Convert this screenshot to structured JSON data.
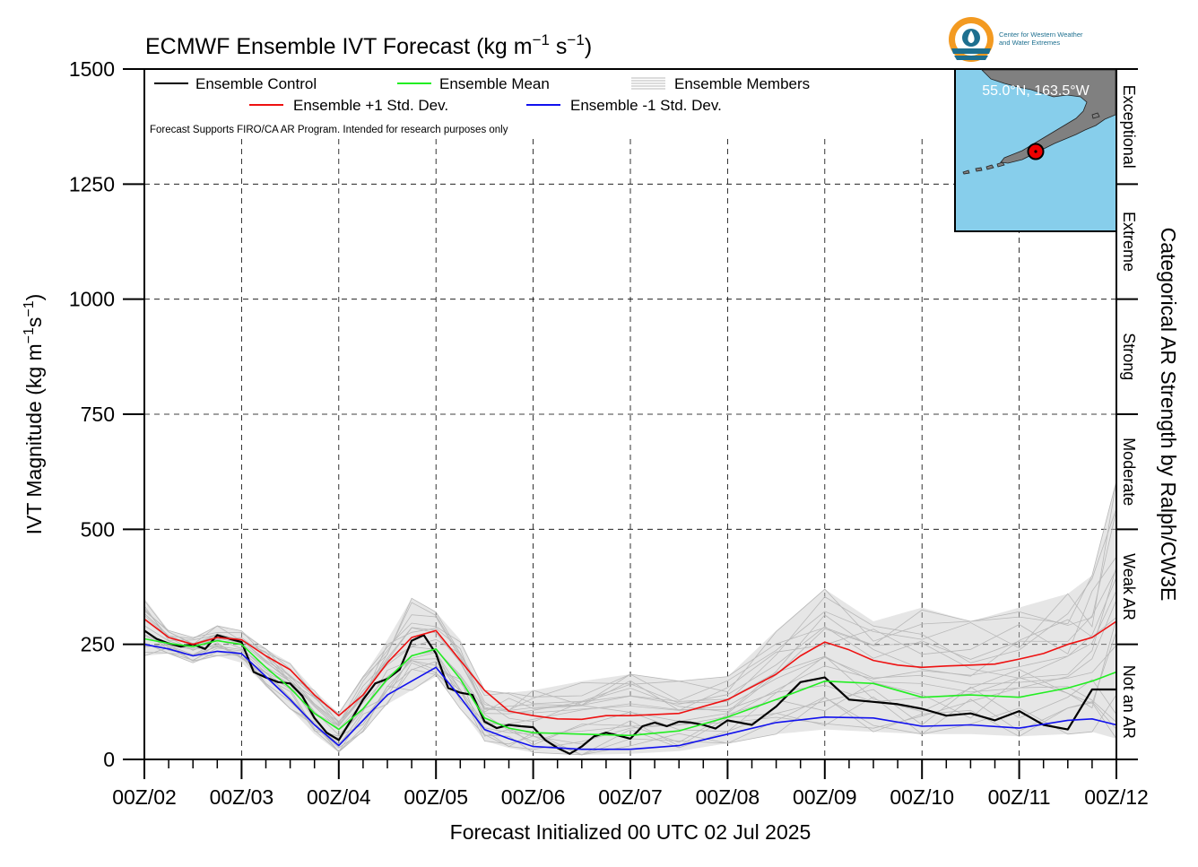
{
  "chart_data": {
    "type": "line",
    "title": "ECMWF Ensemble IVT Forecast (kg m",
    "title_units": {
      "exp1": "−1",
      "s": " s",
      "exp2": "−1",
      "close": ")"
    },
    "ylabel": "IVT Magnitude (kg m",
    "ylabel_units": {
      "exp1": "−1",
      "s": "s",
      "exp2": "−1",
      "close": ")"
    },
    "xlabel": "Forecast Initialized 00 UTC 02 Jul 2025",
    "right_label": "Categorical AR Strength by Ralph/CW3E",
    "ylim": [
      0,
      1500
    ],
    "yticks": [
      0,
      250,
      500,
      750,
      1000,
      1250,
      1500
    ],
    "xlim": [
      0,
      240
    ],
    "x_unit": "forecast hour",
    "x_ticks": [
      0,
      24,
      48,
      72,
      96,
      120,
      144,
      168,
      192,
      216,
      240
    ],
    "x_tick_labels": [
      "00Z/02",
      "00Z/03",
      "00Z/04",
      "00Z/05",
      "00Z/06",
      "00Z/07",
      "00Z/08",
      "00Z/09",
      "00Z/10",
      "00Z/11",
      "00Z/12"
    ],
    "grid": true,
    "categories": [
      {
        "label": "Not an AR",
        "min": 0,
        "max": 250
      },
      {
        "label": "Weak AR",
        "min": 250,
        "max": 500
      },
      {
        "label": "Moderate",
        "min": 500,
        "max": 750
      },
      {
        "label": "Strong",
        "min": 750,
        "max": 1000
      },
      {
        "label": "Extreme",
        "min": 1000,
        "max": 1250
      },
      {
        "label": "Exceptional",
        "min": 1250,
        "max": 1500
      }
    ],
    "legend": {
      "placement": "top-left",
      "entries": [
        {
          "label": "Ensemble Control",
          "color": "#000000"
        },
        {
          "label": "Ensemble Mean",
          "color": "#22ee22"
        },
        {
          "label": "Ensemble Members",
          "color": "#b8b8b8"
        },
        {
          "label": "Ensemble +1 Std. Dev.",
          "color": "#ee1111"
        },
        {
          "label": "Ensemble -1 Std. Dev.",
          "color": "#1111ee"
        }
      ]
    },
    "disclaimer": "Forecast Supports FIRO/CA AR Program. Intended for research purposes only",
    "inset_map": {
      "location_label": "55.0°N, 163.5°W",
      "ocean_color": "#87ceeb",
      "land_color": "#808080",
      "marker_color": "#ee0000"
    },
    "logo": {
      "text": [
        "Center for Western Weather",
        "and Water Extremes"
      ],
      "colors": [
        "#f39a21",
        "#1d6f8f"
      ]
    },
    "series": [
      {
        "name": "Ensemble Control",
        "color": "#000000",
        "x": [
          0,
          3,
          6,
          9,
          12,
          15,
          18,
          21,
          24,
          27,
          30,
          33,
          36,
          39,
          42,
          45,
          48,
          51,
          54,
          57,
          60,
          63,
          66,
          69,
          72,
          75,
          78,
          81,
          84,
          87,
          90,
          93,
          96,
          99,
          102,
          105,
          108,
          111,
          114,
          117,
          120,
          123,
          126,
          129,
          132,
          135,
          138,
          141,
          144,
          150,
          156,
          162,
          168,
          174,
          180,
          186,
          192,
          198,
          204,
          210,
          216,
          222,
          228,
          234,
          240
        ],
        "y": [
          280,
          262,
          252,
          245,
          250,
          240,
          270,
          262,
          255,
          190,
          178,
          168,
          165,
          138,
          90,
          58,
          42,
          85,
          130,
          165,
          175,
          195,
          258,
          270,
          230,
          155,
          145,
          140,
          82,
          68,
          75,
          72,
          70,
          42,
          25,
          12,
          28,
          50,
          58,
          52,
          45,
          72,
          80,
          72,
          82,
          80,
          75,
          67,
          85,
          75,
          115,
          168,
          178,
          130,
          125,
          120,
          110,
          95,
          100,
          85,
          105,
          75,
          65,
          152,
          152
        ],
        "visible_upto": 240
      },
      {
        "name": "Ensemble Mean",
        "color": "#22ee22",
        "x": [
          0,
          6,
          12,
          18,
          24,
          30,
          36,
          42,
          48,
          54,
          60,
          66,
          72,
          78,
          84,
          90,
          96,
          108,
          120,
          132,
          144,
          156,
          168,
          180,
          192,
          204,
          216,
          228,
          234,
          240
        ],
        "y": [
          262,
          252,
          245,
          258,
          250,
          200,
          155,
          100,
          65,
          110,
          175,
          225,
          240,
          175,
          90,
          68,
          58,
          55,
          52,
          62,
          92,
          130,
          170,
          165,
          135,
          140,
          135,
          155,
          170,
          190
        ]
      },
      {
        "name": "Ensemble +1 Std. Dev.",
        "color": "#ee1111",
        "x": [
          0,
          6,
          12,
          18,
          24,
          30,
          36,
          42,
          48,
          54,
          60,
          66,
          72,
          78,
          84,
          90,
          96,
          102,
          108,
          114,
          120,
          132,
          144,
          156,
          162,
          168,
          174,
          180,
          186,
          192,
          198,
          204,
          210,
          216,
          222,
          228,
          234,
          240
        ],
        "y": [
          305,
          265,
          250,
          265,
          260,
          225,
          195,
          140,
          95,
          140,
          210,
          265,
          280,
          215,
          150,
          105,
          95,
          88,
          87,
          95,
          95,
          100,
          130,
          185,
          225,
          255,
          238,
          215,
          205,
          200,
          203,
          205,
          207,
          218,
          230,
          250,
          265,
          300
        ]
      },
      {
        "name": "Ensemble -1 Std. Dev.",
        "color": "#1111ee",
        "x": [
          0,
          6,
          12,
          18,
          24,
          30,
          36,
          42,
          48,
          54,
          60,
          66,
          72,
          78,
          84,
          90,
          96,
          108,
          120,
          132,
          144,
          156,
          168,
          180,
          192,
          204,
          216,
          228,
          234,
          240
        ],
        "y": [
          250,
          240,
          225,
          235,
          230,
          180,
          130,
          75,
          30,
          85,
          140,
          170,
          200,
          135,
          65,
          45,
          28,
          22,
          22,
          30,
          55,
          80,
          92,
          90,
          72,
          75,
          68,
          85,
          88,
          75
        ]
      },
      {
        "name": "Ensemble Members",
        "color": "#b8b8b8",
        "kind": "envelope",
        "x": [
          0,
          6,
          12,
          18,
          24,
          30,
          36,
          42,
          48,
          54,
          60,
          66,
          72,
          78,
          84,
          90,
          96,
          108,
          120,
          132,
          144,
          156,
          168,
          180,
          192,
          204,
          216,
          228,
          234,
          240
        ],
        "low": [
          225,
          230,
          210,
          225,
          210,
          160,
          110,
          55,
          15,
          60,
          120,
          150,
          180,
          110,
          40,
          25,
          15,
          10,
          12,
          18,
          35,
          55,
          65,
          60,
          55,
          55,
          50,
          55,
          60,
          45
        ],
        "high": [
          350,
          280,
          265,
          290,
          280,
          240,
          210,
          150,
          100,
          180,
          260,
          350,
          320,
          260,
          150,
          145,
          150,
          170,
          185,
          170,
          180,
          280,
          370,
          300,
          330,
          300,
          330,
          360,
          400,
          605
        ]
      }
    ]
  }
}
